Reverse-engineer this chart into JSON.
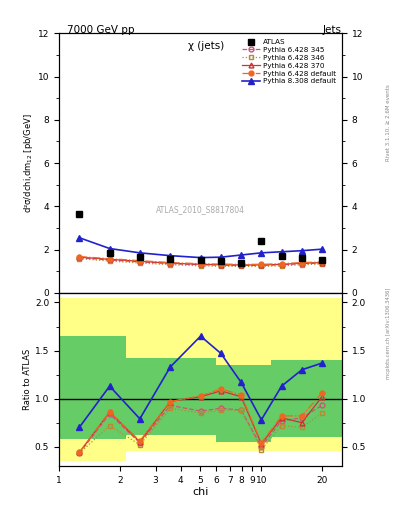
{
  "title_top": "7000 GeV pp",
  "title_right": "Jets",
  "plot_title": "χ (jets)",
  "ylabel_main": "d²σ/dchi,dm$_{12}$ [pb/GeV]",
  "ylabel_ratio": "Ratio to ATLAS",
  "xlabel": "chi",
  "watermark": "ATLAS_2010_S8817804",
  "rivet_label": "Rivet 3.1.10, ≥ 2.6M events",
  "arxiv_label": "[arXiv:1306.3436]",
  "mcplots_label": "mcplots.cern.ch",
  "chi_values": [
    1.26,
    1.78,
    2.51,
    3.55,
    5.01,
    6.31,
    7.94,
    10.0,
    12.59,
    15.85,
    19.95
  ],
  "atlas_data": [
    3.65,
    1.85,
    1.65,
    1.55,
    1.5,
    1.45,
    1.4,
    2.4,
    1.7,
    1.6,
    1.5
  ],
  "py6_345_data": [
    1.62,
    1.52,
    1.43,
    1.35,
    1.3,
    1.28,
    1.27,
    1.27,
    1.3,
    1.35,
    1.38
  ],
  "py6_346_data": [
    1.58,
    1.47,
    1.38,
    1.3,
    1.25,
    1.23,
    1.22,
    1.22,
    1.25,
    1.3,
    1.33
  ],
  "py6_370_data": [
    1.65,
    1.55,
    1.46,
    1.37,
    1.32,
    1.3,
    1.29,
    1.29,
    1.32,
    1.37,
    1.4
  ],
  "py6_def_data": [
    1.68,
    1.58,
    1.49,
    1.4,
    1.35,
    1.33,
    1.32,
    1.32,
    1.35,
    1.4,
    1.43
  ],
  "py8_def_data": [
    2.55,
    2.05,
    1.85,
    1.72,
    1.63,
    1.65,
    1.75,
    1.85,
    1.9,
    1.95,
    2.02
  ],
  "ratio_py6_345": [
    0.43,
    0.84,
    0.54,
    0.93,
    0.87,
    0.9,
    0.88,
    0.5,
    0.77,
    0.8,
    0.93
  ],
  "ratio_py6_346": [
    0.43,
    0.72,
    0.52,
    0.9,
    0.85,
    0.88,
    0.88,
    0.47,
    0.72,
    0.7,
    0.85
  ],
  "ratio_py6_370": [
    0.44,
    0.86,
    0.55,
    0.97,
    1.02,
    1.08,
    1.02,
    0.53,
    0.8,
    0.75,
    1.02
  ],
  "ratio_py6_def": [
    0.44,
    0.86,
    0.56,
    0.97,
    1.03,
    1.1,
    1.04,
    0.54,
    0.82,
    0.82,
    1.06
  ],
  "ratio_py8_def": [
    0.7,
    1.13,
    0.79,
    1.33,
    1.65,
    1.47,
    1.17,
    0.78,
    1.13,
    1.3,
    1.37
  ],
  "band_chi_edges": [
    1.0,
    1.5,
    2.15,
    3.0,
    4.25,
    6.0,
    8.0,
    11.2,
    14.1,
    17.8,
    25.0
  ],
  "band_yellow_lo": [
    0.35,
    0.35,
    0.45,
    0.45,
    0.45,
    0.45,
    0.45,
    0.45,
    0.45,
    0.45
  ],
  "band_yellow_hi": [
    2.05,
    2.05,
    2.05,
    2.05,
    2.05,
    2.05,
    2.05,
    2.05,
    2.05,
    2.05
  ],
  "band_green_lo": [
    0.58,
    0.58,
    0.62,
    0.62,
    0.62,
    0.55,
    0.55,
    0.6,
    0.6,
    0.6
  ],
  "band_green_hi": [
    1.65,
    1.65,
    1.42,
    1.42,
    1.42,
    1.35,
    1.35,
    1.4,
    1.4,
    1.4
  ],
  "color_py6_345": "#cc5577",
  "color_py6_346": "#bb8833",
  "color_py6_370": "#cc3333",
  "color_py6_def": "#ee6622",
  "color_py8_def": "#2222cc",
  "ylim_main": [
    0,
    12
  ],
  "ylim_ratio": [
    0.3,
    2.1
  ],
  "yticks_main": [
    0,
    2,
    4,
    6,
    8,
    10,
    12
  ],
  "yticks_ratio": [
    0.5,
    1.0,
    1.5,
    2.0
  ]
}
